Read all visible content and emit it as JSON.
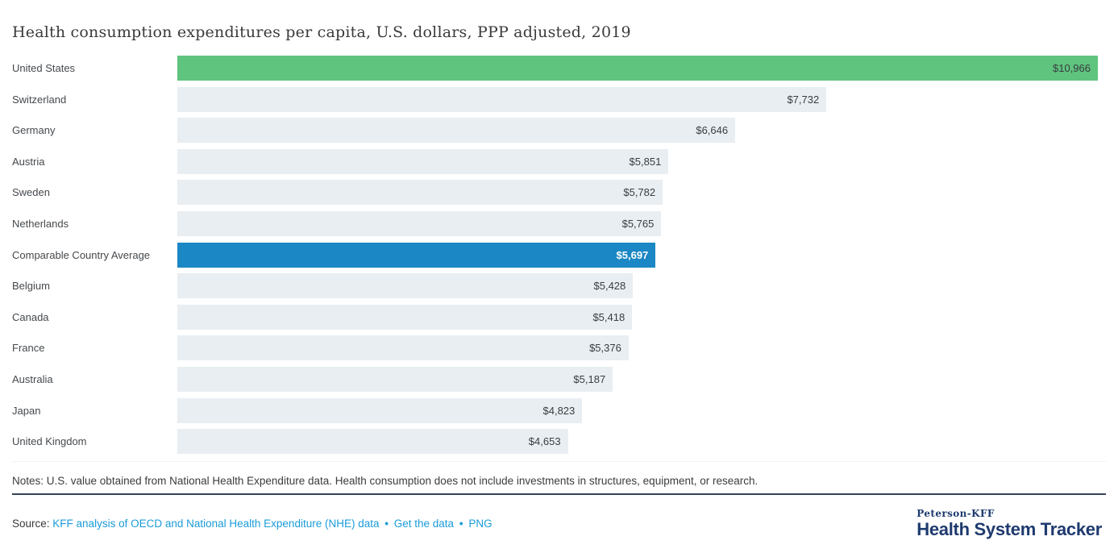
{
  "title": "Health consumption expenditures per capita, U.S. dollars, PPP adjusted, 2019",
  "chart_data": {
    "type": "bar",
    "orientation": "horizontal",
    "title": "Health consumption expenditures per capita, U.S. dollars, PPP adjusted, 2019",
    "xlim": [
      0,
      10966
    ],
    "grid": false,
    "legend": "none",
    "bars": [
      {
        "label": "United States",
        "value": 10966,
        "display": "$10,966",
        "color": "green",
        "value_color": "dark",
        "bold_value": false
      },
      {
        "label": "Switzerland",
        "value": 7732,
        "display": "$7,732",
        "color": "gray",
        "value_color": "dark",
        "bold_value": false
      },
      {
        "label": "Germany",
        "value": 6646,
        "display": "$6,646",
        "color": "gray",
        "value_color": "dark",
        "bold_value": false
      },
      {
        "label": "Austria",
        "value": 5851,
        "display": "$5,851",
        "color": "gray",
        "value_color": "dark",
        "bold_value": false
      },
      {
        "label": "Sweden",
        "value": 5782,
        "display": "$5,782",
        "color": "gray",
        "value_color": "dark",
        "bold_value": false
      },
      {
        "label": "Netherlands",
        "value": 5765,
        "display": "$5,765",
        "color": "gray",
        "value_color": "dark",
        "bold_value": false
      },
      {
        "label": "Comparable Country Average",
        "value": 5697,
        "display": "$5,697",
        "color": "blue",
        "value_color": "white",
        "bold_value": true
      },
      {
        "label": "Belgium",
        "value": 5428,
        "display": "$5,428",
        "color": "gray",
        "value_color": "dark",
        "bold_value": false
      },
      {
        "label": "Canada",
        "value": 5418,
        "display": "$5,418",
        "color": "gray",
        "value_color": "dark",
        "bold_value": false
      },
      {
        "label": "France",
        "value": 5376,
        "display": "$5,376",
        "color": "gray",
        "value_color": "dark",
        "bold_value": false
      },
      {
        "label": "Australia",
        "value": 5187,
        "display": "$5,187",
        "color": "gray",
        "value_color": "dark",
        "bold_value": false
      },
      {
        "label": "Japan",
        "value": 4823,
        "display": "$4,823",
        "color": "gray",
        "value_color": "dark",
        "bold_value": false
      },
      {
        "label": "United Kingdom",
        "value": 4653,
        "display": "$4,653",
        "color": "gray",
        "value_color": "dark",
        "bold_value": false
      }
    ]
  },
  "colors": {
    "green": "#5fc47d",
    "blue": "#1b87c4",
    "gray": "#e9eef2",
    "dark": "#383d42",
    "white": "#ffffff",
    "link": "#1b9cd8",
    "navy": "#1e3a6e"
  },
  "notes": {
    "text": "Notes: U.S. value obtained from National Health Expenditure data. Health consumption does not include investments in structures, equipment, or research."
  },
  "source": {
    "label": "Source:",
    "links": [
      "KFF analysis of OECD and National Health Expenditure (NHE) data",
      "Get the data",
      "PNG"
    ],
    "separator": "•"
  },
  "logo": {
    "top": "Peterson-KFF",
    "main": "Health System Tracker"
  }
}
